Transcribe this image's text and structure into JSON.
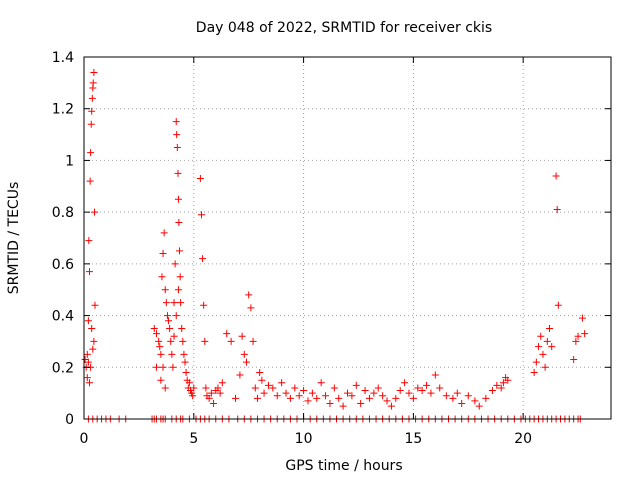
{
  "chart_data": {
    "type": "scatter",
    "title": "Day 048 of 2022, SRMTID for receiver ckis",
    "xlabel": "GPS time / hours",
    "ylabel": "SRMTID / TECUs",
    "xlim": [
      0,
      24
    ],
    "ylim": [
      0,
      1.4
    ],
    "xticks": [
      0,
      5,
      10,
      15,
      20
    ],
    "xtick_labels": [
      "0",
      "5",
      "10",
      "15",
      "20"
    ],
    "yticks": [
      0,
      0.2,
      0.4,
      0.6,
      0.8,
      1,
      1.2,
      1.4
    ],
    "ytick_labels": [
      "0",
      "0.2",
      "0.4",
      "0.6",
      "0.8",
      "1",
      "1.2",
      "1.4"
    ],
    "grid": true,
    "marker": "+",
    "color": "#ff0000",
    "series": [
      {
        "name": "SRMTID",
        "x": [
          0.05,
          0.1,
          0.15,
          0.2,
          0.22,
          0.25,
          0.28,
          0.3,
          0.33,
          0.35,
          0.38,
          0.4,
          0.42,
          0.45,
          0.48,
          0.5,
          0.35,
          0.4,
          0.45,
          0.3,
          0.25,
          0.2,
          0.15,
          3.2,
          3.3,
          3.4,
          3.5,
          3.55,
          3.6,
          3.65,
          3.7,
          3.75,
          3.8,
          3.85,
          3.9,
          3.95,
          4.0,
          4.05,
          4.1,
          4.15,
          4.2,
          4.22,
          4.25,
          4.28,
          4.3,
          4.32,
          4.35,
          4.38,
          4.4,
          4.45,
          4.5,
          4.55,
          4.6,
          4.65,
          4.7,
          4.75,
          4.8,
          4.85,
          4.9,
          4.95,
          5.0,
          3.5,
          3.6,
          3.7,
          3.3,
          3.45,
          4.1,
          4.2,
          4.3,
          5.3,
          5.35,
          5.4,
          5.45,
          5.5,
          5.55,
          5.6,
          5.7,
          5.8,
          5.9,
          6.0,
          6.1,
          6.2,
          6.3,
          6.5,
          6.7,
          6.9,
          7.1,
          7.2,
          7.3,
          7.4,
          7.5,
          7.6,
          7.7,
          7.8,
          7.9,
          8.0,
          8.1,
          8.2,
          8.4,
          8.6,
          8.8,
          9.0,
          9.2,
          9.4,
          9.6,
          9.8,
          10.0,
          10.2,
          10.4,
          10.6,
          10.8,
          11.0,
          11.2,
          11.4,
          11.6,
          11.8,
          12.0,
          12.2,
          12.4,
          12.6,
          12.8,
          13.0,
          13.2,
          13.4,
          13.6,
          13.8,
          14.0,
          14.2,
          14.4,
          14.6,
          14.8,
          15.0,
          15.2,
          15.4,
          15.6,
          15.8,
          16.0,
          16.2,
          16.5,
          16.8,
          17.0,
          17.2,
          17.5,
          17.8,
          18.0,
          18.3,
          18.6,
          18.8,
          19.0,
          19.1,
          19.2,
          19.3,
          20.5,
          20.6,
          20.7,
          20.8,
          20.9,
          21.0,
          21.1,
          21.2,
          21.3,
          21.5,
          21.55,
          21.6,
          22.3,
          22.4,
          22.5,
          22.7,
          22.8
        ],
        "y": [
          0.23,
          0.2,
          0.16,
          0.38,
          0.69,
          0.57,
          0.92,
          1.03,
          1.14,
          1.19,
          1.24,
          1.28,
          1.3,
          1.34,
          0.8,
          0.44,
          0.35,
          0.27,
          0.3,
          0.2,
          0.14,
          0.22,
          0.25,
          0.35,
          0.33,
          0.3,
          0.25,
          0.55,
          0.64,
          0.72,
          0.5,
          0.45,
          0.4,
          0.38,
          0.35,
          0.3,
          0.25,
          0.2,
          0.45,
          0.6,
          1.15,
          1.1,
          1.05,
          0.95,
          0.85,
          0.76,
          0.65,
          0.55,
          0.45,
          0.35,
          0.3,
          0.25,
          0.22,
          0.18,
          0.15,
          0.12,
          0.14,
          0.11,
          0.1,
          0.09,
          0.12,
          0.15,
          0.2,
          0.12,
          0.2,
          0.28,
          0.32,
          0.4,
          0.5,
          0.93,
          0.79,
          0.62,
          0.44,
          0.3,
          0.12,
          0.09,
          0.08,
          0.1,
          0.06,
          0.11,
          0.12,
          0.1,
          0.14,
          0.33,
          0.3,
          0.08,
          0.17,
          0.32,
          0.25,
          0.22,
          0.48,
          0.43,
          0.3,
          0.12,
          0.08,
          0.18,
          0.15,
          0.1,
          0.13,
          0.12,
          0.09,
          0.14,
          0.1,
          0.08,
          0.12,
          0.09,
          0.11,
          0.07,
          0.1,
          0.08,
          0.14,
          0.09,
          0.06,
          0.12,
          0.08,
          0.05,
          0.1,
          0.09,
          0.13,
          0.06,
          0.11,
          0.08,
          0.1,
          0.12,
          0.09,
          0.07,
          0.05,
          0.08,
          0.11,
          0.14,
          0.1,
          0.08,
          0.12,
          0.11,
          0.13,
          0.1,
          0.17,
          0.12,
          0.09,
          0.08,
          0.1,
          0.06,
          0.09,
          0.07,
          0.05,
          0.08,
          0.11,
          0.13,
          0.12,
          0.14,
          0.16,
          0.15,
          0.18,
          0.22,
          0.28,
          0.32,
          0.25,
          0.2,
          0.3,
          0.35,
          0.28,
          0.94,
          0.81,
          0.44,
          0.23,
          0.3,
          0.32,
          0.39,
          0.33
        ],
        "zero_x": [
          0.2,
          0.4,
          0.6,
          0.8,
          1.0,
          1.2,
          1.6,
          1.9,
          3.1,
          3.2,
          3.3,
          3.5,
          3.6,
          3.7,
          4.0,
          4.2,
          4.4,
          4.5,
          4.8,
          5.1,
          5.3,
          5.5,
          5.7,
          6.0,
          6.3,
          6.6,
          7.0,
          7.3,
          7.6,
          7.9,
          8.2,
          8.5,
          8.8,
          9.1,
          9.4,
          9.7,
          10.0,
          10.3,
          10.6,
          10.9,
          11.2,
          11.5,
          11.8,
          12.1,
          12.4,
          12.7,
          13.0,
          13.3,
          13.6,
          13.9,
          14.2,
          14.5,
          14.8,
          15.1,
          15.4,
          15.7,
          16.0,
          16.3,
          16.6,
          16.9,
          17.2,
          17.5,
          17.8,
          18.1,
          18.4,
          18.7,
          19.0,
          19.3,
          19.6,
          19.9,
          20.1,
          20.3,
          20.5,
          20.7,
          20.9,
          21.1,
          21.3,
          21.5,
          21.7,
          21.9,
          22.1,
          22.3,
          22.5,
          22.6
        ]
      }
    ]
  }
}
